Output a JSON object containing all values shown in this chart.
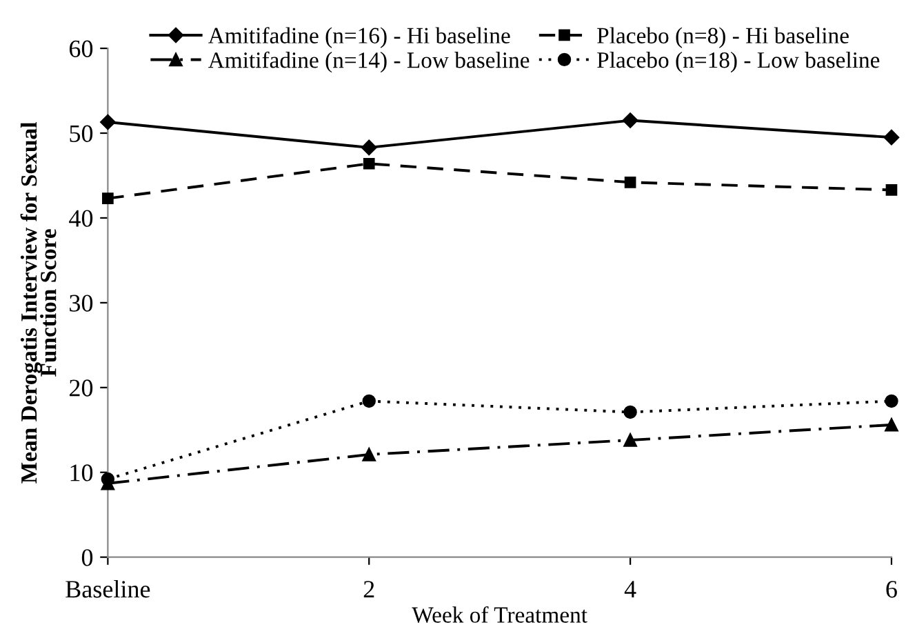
{
  "chart_data": {
    "type": "line",
    "xlabel": "Week of Treatment",
    "ylabel": "Mean Derogatis Interview for Sexual\nFunction Score",
    "categories": [
      "Baseline",
      "2",
      "4",
      "6"
    ],
    "series": [
      {
        "name": "Amitifadine (n=16) - Hi baseline",
        "color": "#000000",
        "marker": "diamond",
        "line_style": "solid",
        "values": [
          51.3,
          48.3,
          51.5,
          49.5
        ]
      },
      {
        "name": "Placebo (n=8) - Hi baseline",
        "color": "#000000",
        "marker": "square",
        "line_style": "dashed",
        "values": [
          42.3,
          46.4,
          44.2,
          43.3
        ]
      },
      {
        "name": "Amitifadine (n=14) - Low baseline",
        "color": "#000000",
        "marker": "triangle",
        "line_style": "dashdot",
        "values": [
          8.7,
          12.1,
          13.8,
          15.6
        ]
      },
      {
        "name": "Placebo (n=18) - Low baseline",
        "color": "#000000",
        "marker": "circle",
        "line_style": "dotted",
        "values": [
          9.2,
          18.4,
          17.1,
          18.4
        ]
      }
    ],
    "ylim": [
      0,
      60
    ],
    "yticks": [
      0,
      10,
      20,
      30,
      40,
      50,
      60
    ],
    "grid": false,
    "legend": "top"
  }
}
